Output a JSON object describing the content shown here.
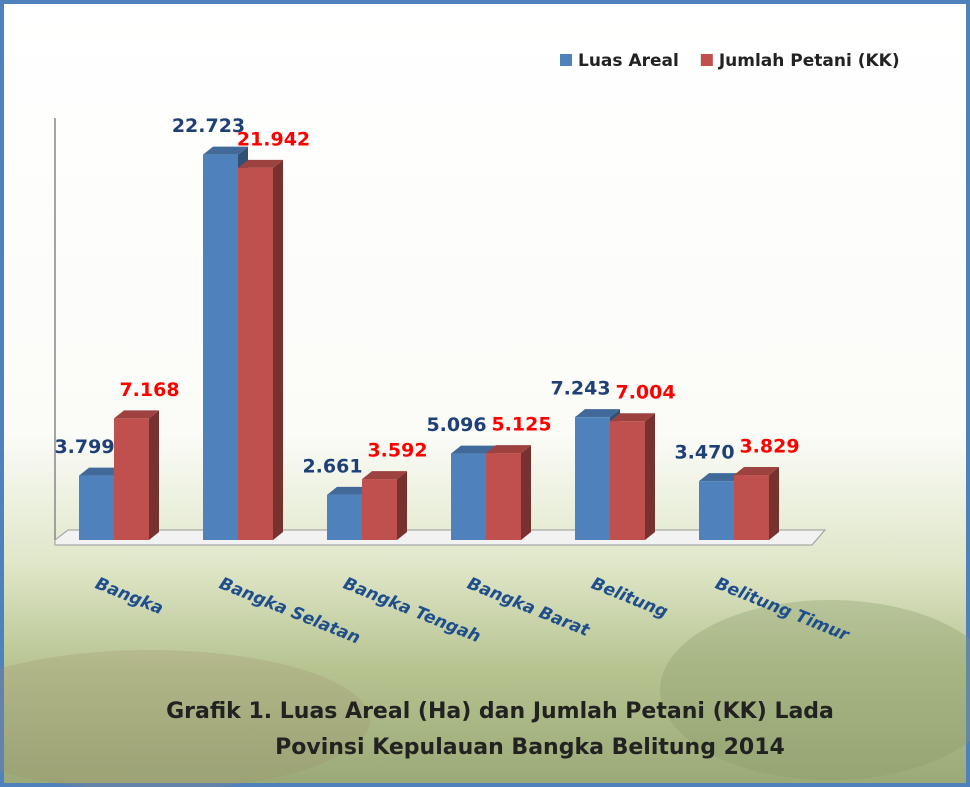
{
  "chart_data": {
    "type": "bar3d",
    "title": [
      "Grafik 1.  Luas Areal (Ha) dan Jumlah Petani (KK) Lada",
      "Povinsi Kepulauan Bangka Belitung 2014"
    ],
    "categories": [
      "Bangka",
      "Bangka Selatan",
      "Bangka Tengah",
      "Bangka Barat",
      "Belitung",
      "Belitung Timur"
    ],
    "series": [
      {
        "name": "Luas Areal",
        "color": "#4f81bd",
        "label_color": "#1f3f77",
        "values": [
          3799,
          22723,
          2661,
          5096,
          7243,
          3470
        ],
        "value_labels": [
          "3.799",
          "22.723",
          "2.661",
          "5.096",
          "7.243",
          "3.470"
        ]
      },
      {
        "name": "Jumlah Petani (KK)",
        "color": "#c0504d",
        "label_color": "#ff0000",
        "values": [
          7168,
          21942,
          3592,
          5125,
          7004,
          3829
        ],
        "value_labels": [
          "7.168",
          "21.942",
          "3.592",
          "5.125",
          "7.004",
          "3.829"
        ]
      }
    ],
    "ylim": [
      0,
      25000
    ],
    "legend": "top-right"
  }
}
